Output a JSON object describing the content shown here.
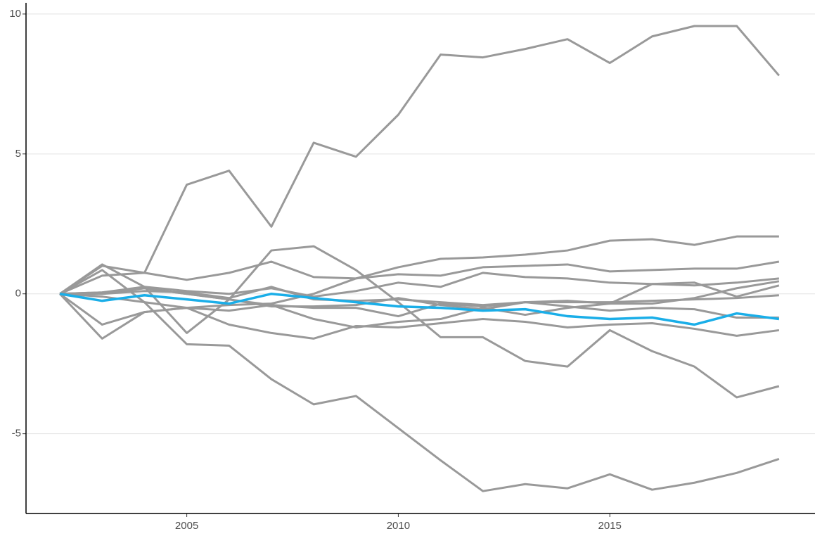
{
  "chart_data": {
    "type": "line",
    "x": [
      2002,
      2003,
      2004,
      2005,
      2006,
      2007,
      2008,
      2009,
      2010,
      2011,
      2012,
      2013,
      2014,
      2015,
      2016,
      2017,
      2018,
      2019
    ],
    "xlim": [
      2001.2,
      2019.85
    ],
    "xticks": [
      2005,
      2010,
      2015
    ],
    "ylim": [
      -7.85,
      10.4
    ],
    "yticks": [
      -5,
      0,
      5,
      10
    ],
    "grid": true,
    "series": [
      {
        "color": "#999999",
        "values": [
          0,
          1.0,
          0.75,
          3.9,
          4.4,
          2.4,
          5.4,
          4.9,
          6.4,
          8.55,
          8.45,
          8.75,
          9.1,
          8.25,
          9.2,
          9.57,
          9.57,
          7.8
        ]
      },
      {
        "color": "#999999",
        "values": [
          0,
          0.85,
          -0.3,
          -1.8,
          -1.85,
          -3.05,
          -3.95,
          -3.65,
          -4.8,
          -5.95,
          -7.05,
          -6.8,
          -6.95,
          -6.45,
          -7.0,
          -6.75,
          -6.4,
          -5.9
        ]
      },
      {
        "color": "#999999",
        "values": [
          0,
          0.65,
          0.75,
          0.5,
          0.75,
          1.15,
          0.6,
          0.55,
          0.7,
          0.65,
          0.95,
          1.0,
          1.05,
          0.8,
          0.85,
          0.9,
          0.9,
          1.15
        ]
      },
      {
        "color": "#999999",
        "values": [
          0,
          -1.6,
          -0.65,
          -0.5,
          -0.4,
          -0.35,
          0.0,
          0.55,
          0.95,
          1.25,
          1.3,
          1.4,
          1.55,
          1.9,
          1.95,
          1.75,
          2.05,
          2.05
        ]
      },
      {
        "color": "#999999",
        "values": [
          0,
          1.05,
          0.25,
          -1.4,
          -0.2,
          1.55,
          1.7,
          0.85,
          -0.3,
          -1.55,
          -1.55,
          -2.4,
          -2.6,
          -1.3,
          -2.05,
          -2.6,
          -3.7,
          -3.3
        ]
      },
      {
        "color": "#999999",
        "values": [
          0,
          -1.1,
          -0.65,
          -0.5,
          -1.1,
          -1.4,
          -1.6,
          -1.15,
          -1.2,
          -1.05,
          -0.9,
          -1.0,
          -1.2,
          -1.1,
          -1.05,
          -1.25,
          -1.5,
          -1.3
        ]
      },
      {
        "color": "#999999",
        "values": [
          0,
          0.05,
          0.25,
          0.1,
          0.0,
          0.2,
          -0.1,
          0.1,
          0.4,
          0.25,
          0.75,
          0.6,
          0.55,
          0.4,
          0.35,
          0.3,
          0.4,
          0.55
        ]
      },
      {
        "color": "#999999",
        "values": [
          0,
          0.0,
          0.2,
          0.0,
          -0.2,
          -0.4,
          -0.5,
          -0.5,
          -0.8,
          -0.35,
          -0.45,
          -0.3,
          -0.25,
          -0.35,
          0.35,
          0.4,
          -0.1,
          0.3
        ]
      },
      {
        "color": "#999999",
        "values": [
          0,
          -0.1,
          -0.3,
          -0.5,
          -0.6,
          -0.4,
          -0.9,
          -1.2,
          -1.0,
          -0.9,
          -0.5,
          -0.75,
          -0.5,
          -0.35,
          -0.35,
          -0.15,
          0.2,
          0.45
        ]
      },
      {
        "color": "#999999",
        "values": [
          0,
          0.0,
          0.1,
          0.05,
          -0.15,
          0.25,
          -0.2,
          -0.25,
          -0.2,
          -0.3,
          -0.4,
          -0.3,
          -0.3,
          -0.3,
          -0.25,
          -0.2,
          -0.15,
          -0.05
        ]
      },
      {
        "color": "#999999",
        "values": [
          0,
          0.05,
          0.2,
          0.0,
          -0.2,
          -0.45,
          -0.45,
          -0.4,
          -0.15,
          -0.4,
          -0.55,
          -0.3,
          -0.45,
          -0.6,
          -0.5,
          -0.55,
          -0.85,
          -0.85
        ]
      },
      {
        "color": "#1aaee8",
        "values": [
          0,
          -0.25,
          -0.05,
          -0.2,
          -0.35,
          0.0,
          -0.15,
          -0.3,
          -0.45,
          -0.5,
          -0.6,
          -0.55,
          -0.8,
          -0.9,
          -0.85,
          -1.1,
          -0.7,
          -0.9
        ]
      }
    ]
  }
}
